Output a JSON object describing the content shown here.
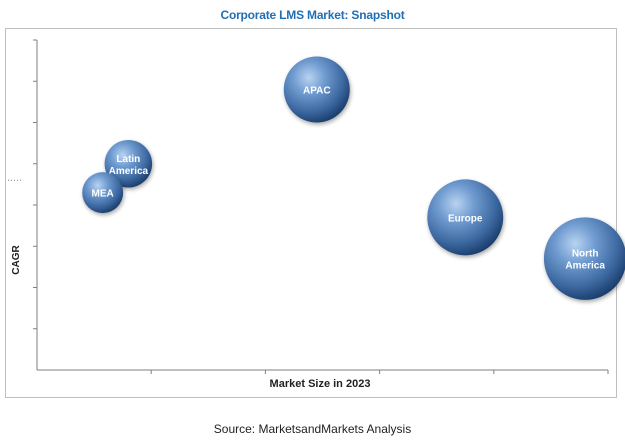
{
  "title": "Corporate LMS Market: Snapshot",
  "source": "Source: MarketsandMarkets Analysis",
  "colors": {
    "title": "#1f6fb5",
    "bubble_light": "#a9c6e8",
    "bubble_mid": "#4a78b0",
    "bubble_dark": "#1c3f6e",
    "axis": "#7f7f7f"
  },
  "chart_data": {
    "type": "scatter",
    "style": "bubble",
    "xlabel": "Market Size in 2023",
    "ylabel": "CAGR",
    "xlim": [
      0,
      10
    ],
    "ylim": [
      0,
      8
    ],
    "grid": false,
    "legend": "none",
    "points": [
      {
        "label_lines": [
          "APAC"
        ],
        "x": 4.9,
        "y": 6.8,
        "size": 1.0
      },
      {
        "label_lines": [
          "Latin",
          "America"
        ],
        "x": 1.6,
        "y": 5.0,
        "size": 0.72
      },
      {
        "label_lines": [
          "MEA"
        ],
        "x": 1.15,
        "y": 4.3,
        "size": 0.62
      },
      {
        "label_lines": [
          "Europe"
        ],
        "x": 7.5,
        "y": 3.7,
        "size": 1.15
      },
      {
        "label_lines": [
          "North",
          "America"
        ],
        "x": 9.6,
        "y": 2.7,
        "size": 1.25
      }
    ]
  }
}
